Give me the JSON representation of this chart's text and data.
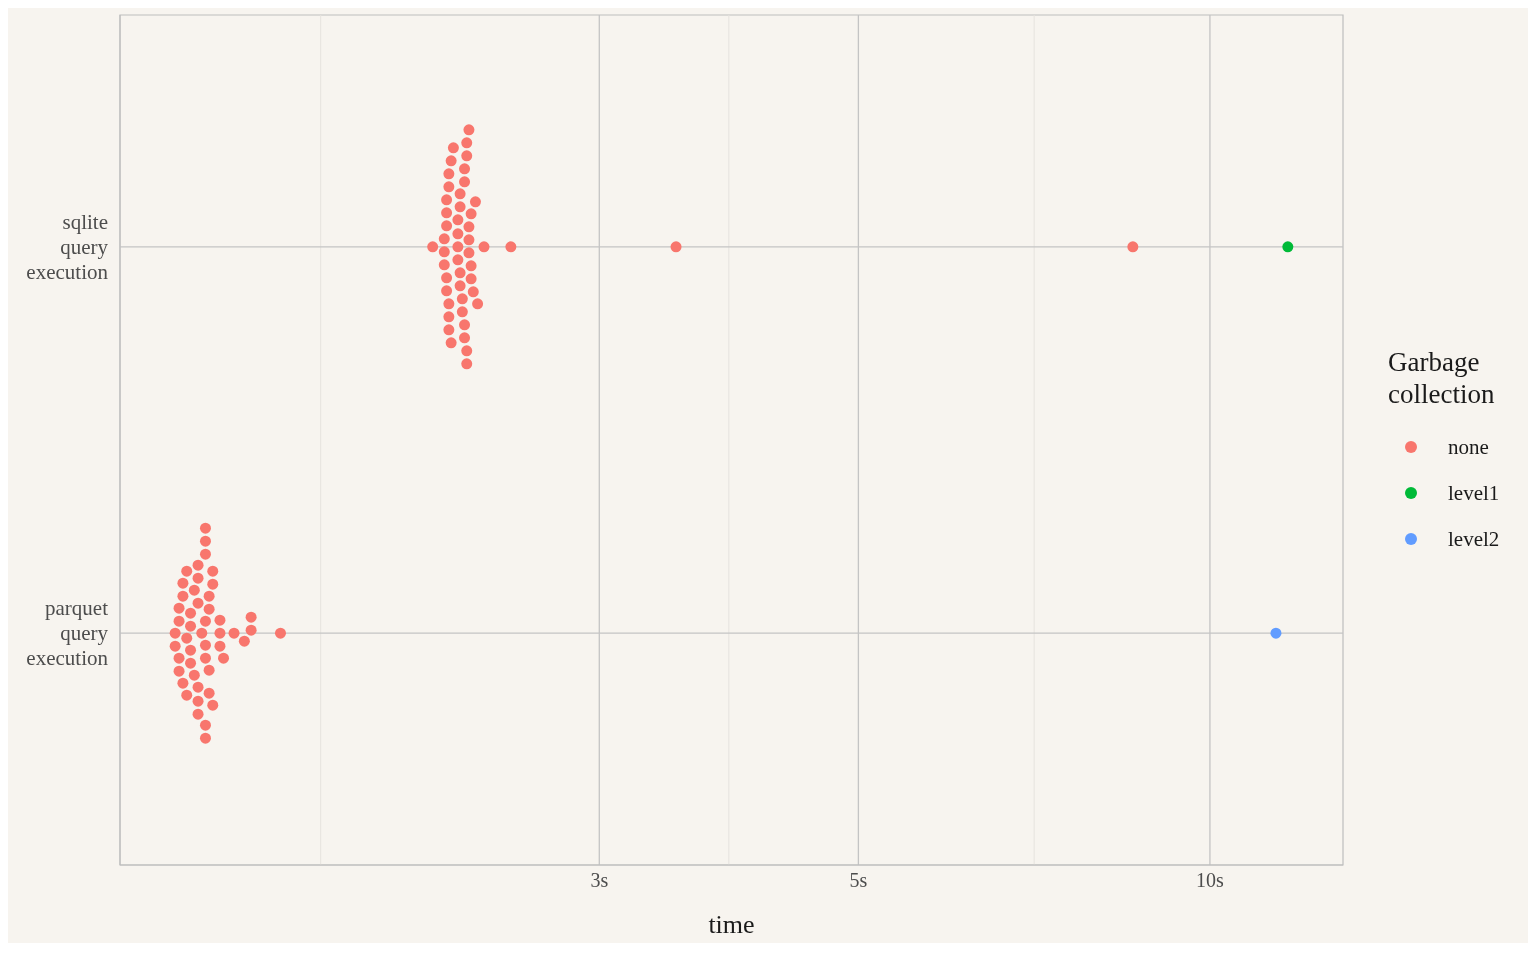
{
  "chart_data": {
    "type": "scatter",
    "orientation": "horizontal",
    "xlabel": "time",
    "legend_title": "Garbage collection",
    "legend": "right",
    "grid": true,
    "log": "x",
    "marker": "circle",
    "categories": [
      "sqlite query execution",
      "parquet query execution"
    ],
    "xlim": [
      1.166,
      13.0
    ],
    "xticks": [
      {
        "value": 1.732,
        "label": null
      },
      {
        "value": 3,
        "label": "3s"
      },
      {
        "value": 3.873,
        "label": null
      },
      {
        "value": 5,
        "label": "5s"
      },
      {
        "value": 7.071,
        "label": null
      },
      {
        "value": 10,
        "label": "10s"
      }
    ],
    "series": [
      {
        "name": "none",
        "color": "#f8766d",
        "x": [
          "sqlite query execution",
          "sqlite query execution",
          "sqlite query execution",
          "sqlite query execution",
          "sqlite query execution",
          "sqlite query execution",
          "sqlite query execution",
          "sqlite query execution",
          "sqlite query execution",
          "sqlite query execution",
          "sqlite query execution",
          "sqlite query execution",
          "sqlite query execution",
          "sqlite query execution",
          "sqlite query execution",
          "sqlite query execution",
          "sqlite query execution",
          "sqlite query execution",
          "sqlite query execution",
          "sqlite query execution",
          "sqlite query execution",
          "sqlite query execution",
          "sqlite query execution",
          "sqlite query execution",
          "sqlite query execution",
          "sqlite query execution",
          "sqlite query execution",
          "sqlite query execution",
          "sqlite query execution",
          "sqlite query execution",
          "sqlite query execution",
          "sqlite query execution",
          "sqlite query execution",
          "sqlite query execution",
          "sqlite query execution",
          "sqlite query execution",
          "sqlite query execution",
          "sqlite query execution",
          "sqlite query execution",
          "sqlite query execution",
          "sqlite query execution",
          "sqlite query execution",
          "sqlite query execution",
          "sqlite query execution",
          "sqlite query execution",
          "sqlite query execution",
          "sqlite query execution",
          "sqlite query execution",
          "sqlite query execution",
          "parquet query execution",
          "parquet query execution",
          "parquet query execution",
          "parquet query execution",
          "parquet query execution",
          "parquet query execution",
          "parquet query execution",
          "parquet query execution",
          "parquet query execution",
          "parquet query execution",
          "parquet query execution",
          "parquet query execution",
          "parquet query execution",
          "parquet query execution",
          "parquet query execution",
          "parquet query execution",
          "parquet query execution",
          "parquet query execution",
          "parquet query execution",
          "parquet query execution",
          "parquet query execution",
          "parquet query execution",
          "parquet query execution",
          "parquet query execution",
          "parquet query execution",
          "parquet query execution",
          "parquet query execution",
          "parquet query execution",
          "parquet query execution",
          "parquet query execution",
          "parquet query execution",
          "parquet query execution",
          "parquet query execution",
          "parquet query execution",
          "parquet query execution",
          "parquet query execution",
          "parquet query execution",
          "parquet query execution",
          "parquet query execution",
          "parquet query execution",
          "parquet query execution",
          "parquet query execution",
          "parquet query execution",
          "parquet query execution",
          "parquet query execution",
          "parquet query execution",
          "parquet query execution",
          "parquet query execution",
          "parquet query execution"
        ],
        "values": [
          2.3,
          2.28,
          2.22,
          2.24,
          2.32,
          2.28,
          2.23,
          2.31,
          2.3,
          2.34,
          2.27,
          2.23,
          2.21,
          2.27,
          2.32,
          2.22,
          2.29,
          2.22,
          2.33,
          2.36,
          2.52,
          2.16,
          2.25,
          2.31,
          2.39,
          2.3,
          2.23,
          2.28,
          2.22,
          2.32,
          2.35,
          2.27,
          2.33,
          2.21,
          2.29,
          2.23,
          2.27,
          2.31,
          2.24,
          2.23,
          2.3,
          2.21,
          2.32,
          2.33,
          2.28,
          2.22,
          2.31,
          3.49,
          8.59,
          1.38,
          1.38,
          1.36,
          1.34,
          1.32,
          1.4,
          1.39,
          1.33,
          1.36,
          1.38,
          1.31,
          1.33,
          1.36,
          1.39,
          1.42,
          1.31,
          1.36,
          1.51,
          1.32,
          1.35,
          1.38,
          1.42,
          1.46,
          1.3,
          1.49,
          1.6,
          1.34,
          1.38,
          1.36,
          1.4,
          1.42,
          1.51,
          1.31,
          1.43,
          1.3,
          1.33,
          1.35,
          1.38,
          1.4,
          1.34,
          1.39,
          1.31,
          1.36,
          1.38,
          1.32,
          1.39,
          1.34,
          1.37,
          1.38
        ]
      },
      {
        "name": "level1",
        "color": "#00ba38",
        "x": [
          "sqlite query execution"
        ],
        "values": [
          11.66
        ]
      },
      {
        "name": "level2",
        "color": "#619cff",
        "x": [
          "parquet query execution"
        ],
        "values": [
          11.39
        ]
      }
    ]
  }
}
